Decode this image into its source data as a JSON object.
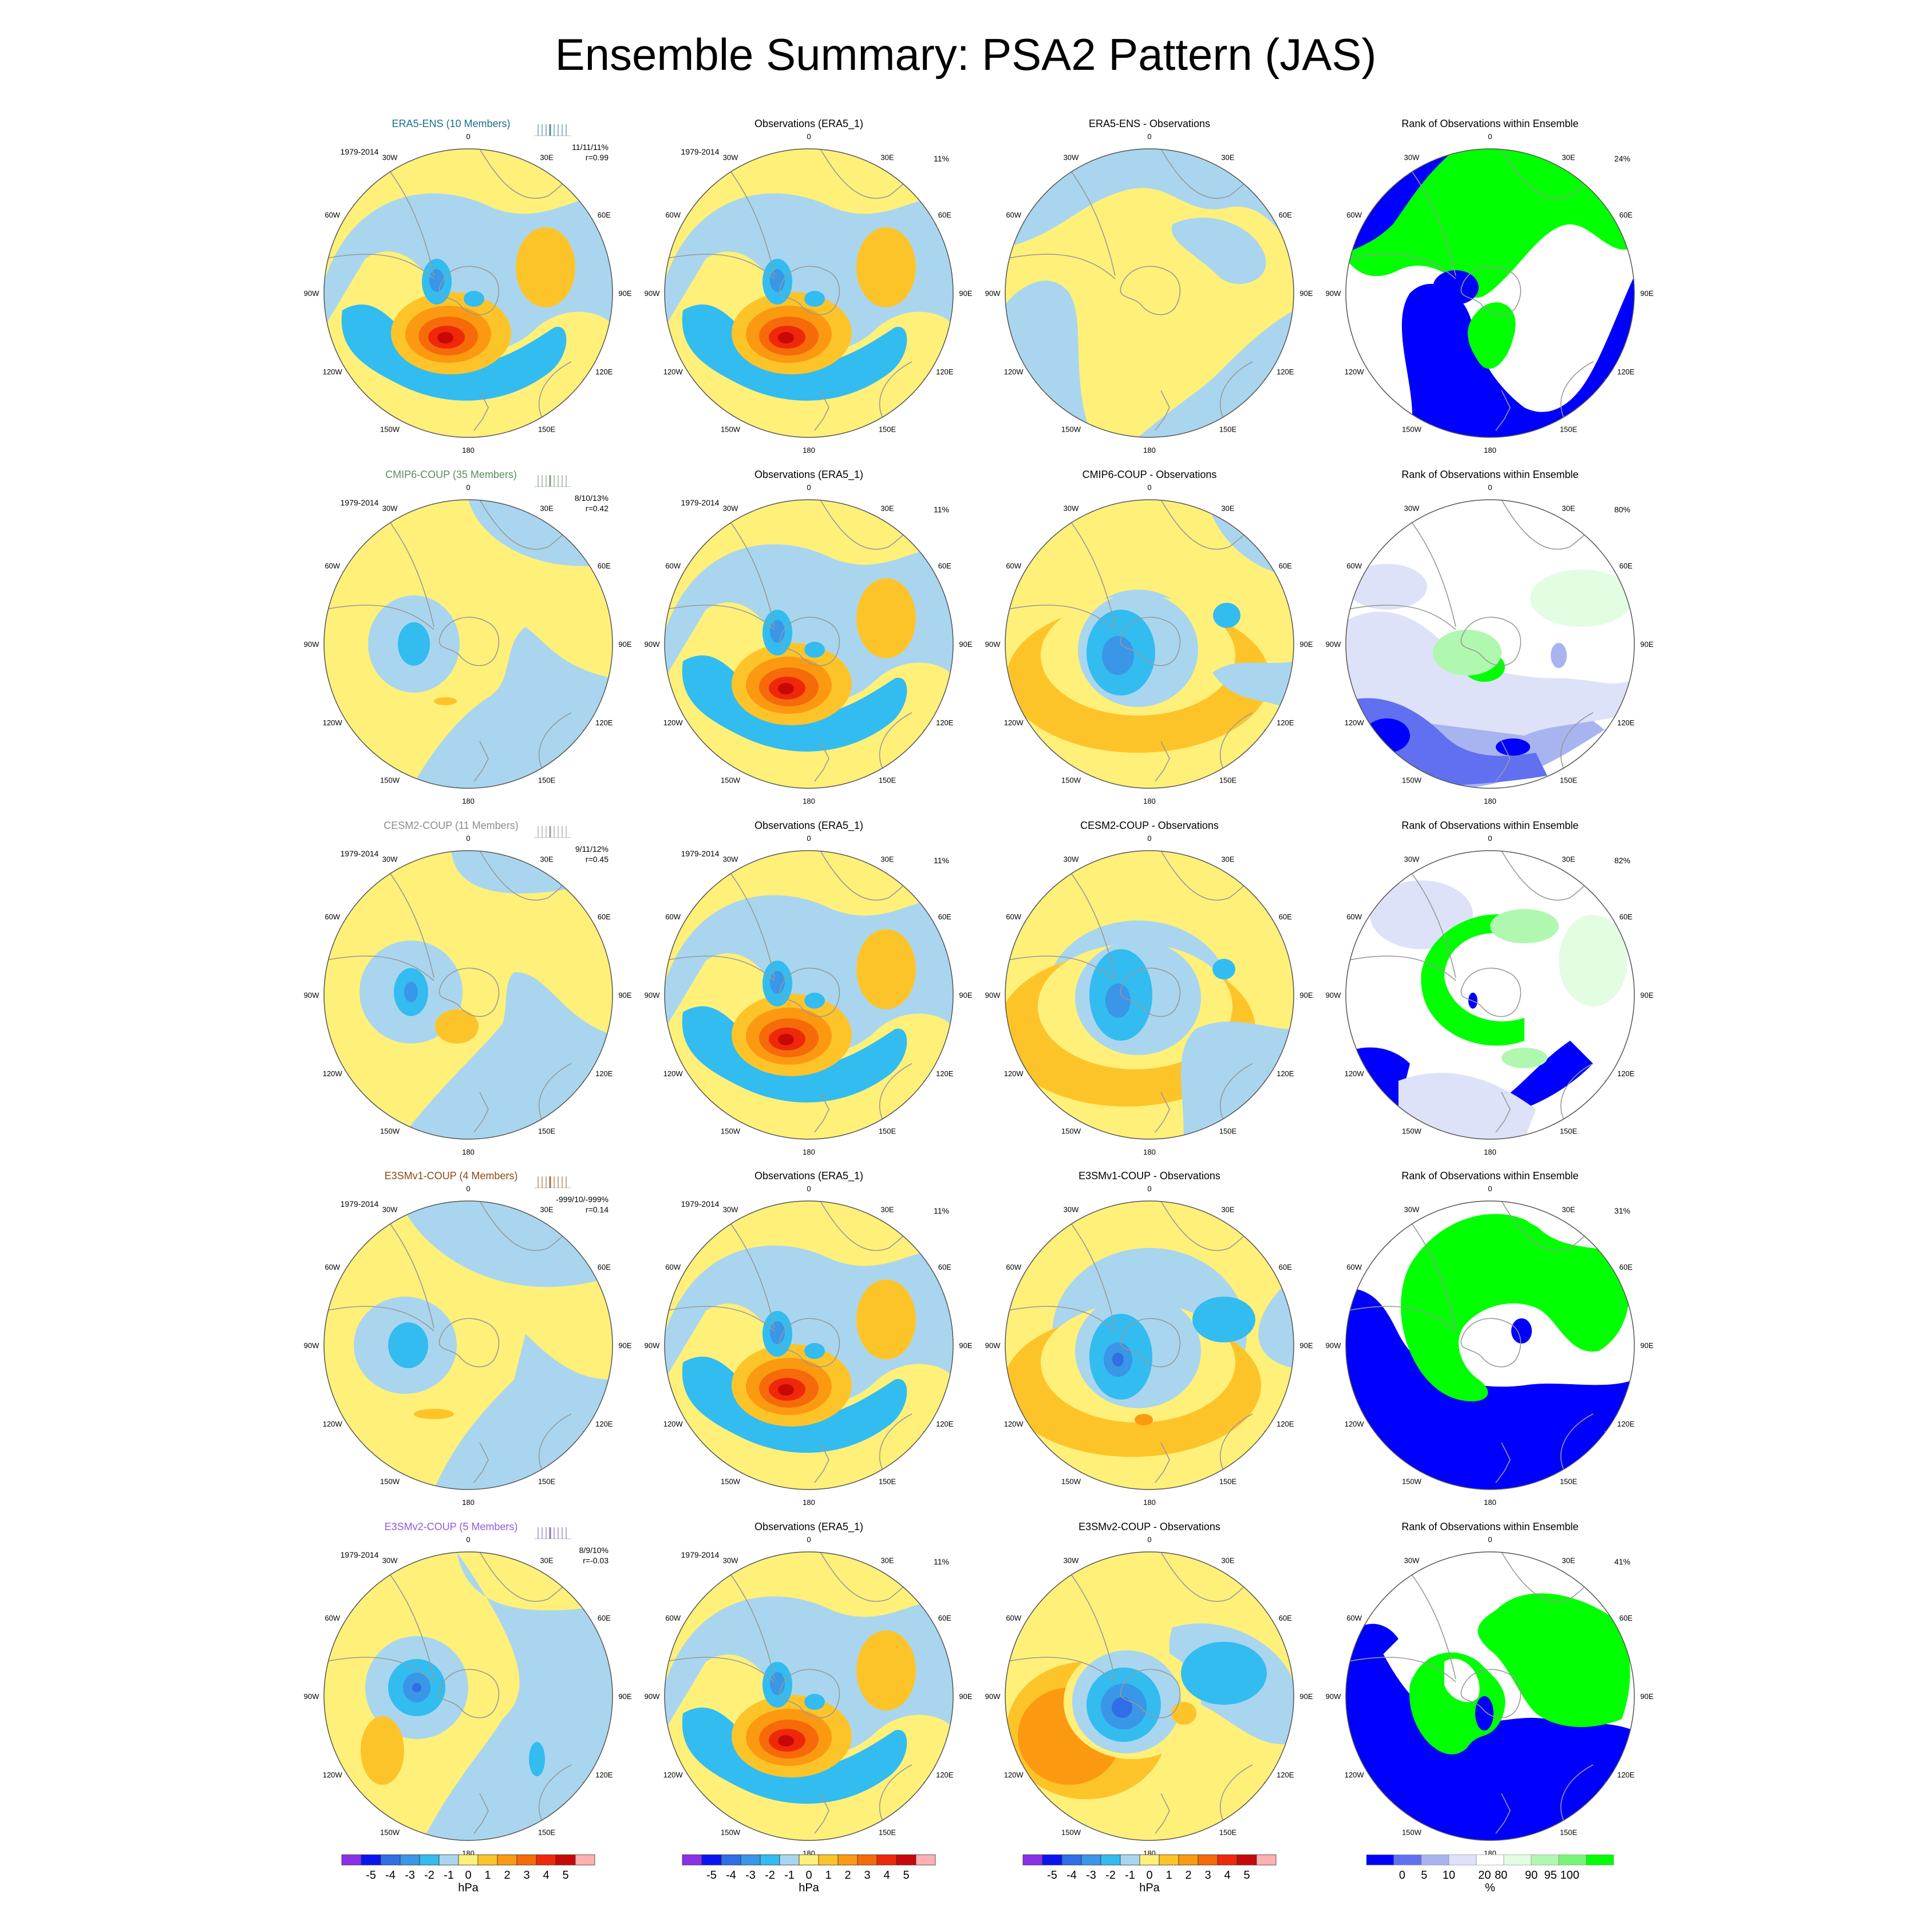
{
  "title": "Ensemble Summary: PSA2 Pattern (JAS)",
  "colors": {
    "land": "#999999",
    "contour_levels": [
      "#8c30e8",
      "#0a14f0",
      "#2f6ee6",
      "#3a96e6",
      "#33bcf0",
      "#a9d6ee",
      "#fff07a",
      "#fdc42a",
      "#fb9a10",
      "#f66a0a",
      "#f0280a",
      "#c80808",
      "#ffb0b0"
    ],
    "rank_levels": [
      "#0000ff",
      "#6070f0",
      "#a8b4f0",
      "#dde2f8",
      "#ffffff",
      "#e2fde2",
      "#b0f8b0",
      "#78f478",
      "#00ff00"
    ]
  },
  "longitude_labels": [
    "0",
    "30E",
    "60E",
    "90E",
    "120E",
    "150E",
    "180",
    "150W",
    "120W",
    "90W",
    "60W",
    "30W"
  ],
  "rows": [
    {
      "ensemble": {
        "title": "ERA5-ENS (10 Members)",
        "title_color": "#1e6e8c",
        "period": "1979-2014",
        "stats": "11/11/11%",
        "corr": "r=0.99",
        "tick_color": "#1e6e8c",
        "pattern": "obs"
      },
      "obs": {
        "title": "Observations (ERA5_1)",
        "period": "1979-2014",
        "pct": "11%"
      },
      "diff": {
        "title": "ERA5-ENS - Observations",
        "pattern": "diff_small"
      },
      "rank": {
        "title": "Rank of Observations within Ensemble",
        "pct": "24%",
        "pattern": "rank1"
      }
    },
    {
      "ensemble": {
        "title": "CMIP6-COUP (35 Members)",
        "title_color": "#5f8a5f",
        "period": "1979-2014",
        "stats": "8/10/13%",
        "corr": "r=0.42",
        "tick_color": "#5f8a5f",
        "pattern": "weak_cmip"
      },
      "obs": {
        "title": "Observations (ERA5_1)",
        "period": "1979-2014",
        "pct": "11%"
      },
      "diff": {
        "title": "CMIP6-COUP - Observations",
        "pattern": "diff_cmip"
      },
      "rank": {
        "title": "Rank of Observations within Ensemble",
        "pct": "80%",
        "pattern": "rank2"
      }
    },
    {
      "ensemble": {
        "title": "CESM2-COUP (11 Members)",
        "title_color": "#8c8c8c",
        "period": "1979-2014",
        "stats": "9/11/12%",
        "corr": "r=0.45",
        "tick_color": "#8c8c8c",
        "pattern": "weak_cesm"
      },
      "obs": {
        "title": "Observations (ERA5_1)",
        "period": "1979-2014",
        "pct": "11%"
      },
      "diff": {
        "title": "CESM2-COUP - Observations",
        "pattern": "diff_cesm"
      },
      "rank": {
        "title": "Rank of Observations within Ensemble",
        "pct": "82%",
        "pattern": "rank3"
      }
    },
    {
      "ensemble": {
        "title": "E3SMv1-COUP (4 Members)",
        "title_color": "#8a4a14",
        "period": "1979-2014",
        "stats": "-999/10/-999%",
        "corr": "r=0.14",
        "tick_color": "#8a4a14",
        "pattern": "weak_e3v1"
      },
      "obs": {
        "title": "Observations (ERA5_1)",
        "period": "1979-2014",
        "pct": "11%"
      },
      "diff": {
        "title": "E3SMv1-COUP - Observations",
        "pattern": "diff_e3v1"
      },
      "rank": {
        "title": "Rank of Observations within Ensemble",
        "pct": "31%",
        "pattern": "rank4"
      }
    },
    {
      "ensemble": {
        "title": "E3SMv2-COUP (5 Members)",
        "title_color": "#8a60d6",
        "period": "1979-2014",
        "stats": "8/9/10%",
        "corr": "r=-0.03",
        "tick_color": "#6a4ab0",
        "pattern": "weak_e3v2"
      },
      "obs": {
        "title": "Observations (ERA5_1)",
        "period": "1979-2014",
        "pct": "11%"
      },
      "diff": {
        "title": "E3SMv2-COUP - Observations",
        "pattern": "diff_e3v2"
      },
      "rank": {
        "title": "Rank of Observations within Ensemble",
        "pct": "41%",
        "pattern": "rank5"
      }
    }
  ],
  "colorbars": [
    {
      "labels": [
        "-5",
        "-4",
        "-3",
        "-2",
        "-1",
        "0",
        "1",
        "2",
        "3",
        "4",
        "5"
      ],
      "unit": "hPa"
    },
    {
      "labels": [
        "-5",
        "-4",
        "-3",
        "-2",
        "-1",
        "0",
        "1",
        "2",
        "3",
        "4",
        "5"
      ],
      "unit": "hPa"
    },
    {
      "labels": [
        "-5",
        "-4",
        "-3",
        "-2",
        "-1",
        "0",
        "1",
        "2",
        "3",
        "4",
        "5"
      ],
      "unit": "hPa"
    },
    {
      "labels": [
        "0",
        "5",
        "10",
        "20",
        "80",
        "90",
        "95",
        "100"
      ],
      "unit": "%"
    }
  ]
}
